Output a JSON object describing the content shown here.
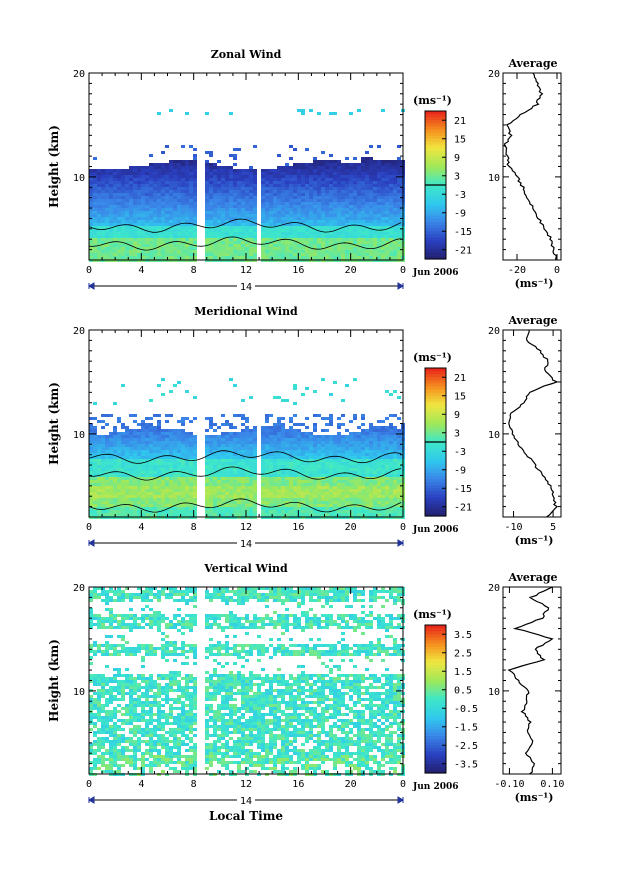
{
  "chart_data": [
    {
      "type": "heatmap",
      "title": "Zonal Wind",
      "ylabel": "Height (km)",
      "ylim": [
        2,
        20
      ],
      "y_ticks": [
        10,
        20
      ],
      "xlabel": "",
      "x_ticks": [
        "0",
        "4",
        "8",
        "12",
        "16",
        "20",
        "0"
      ],
      "day_label": "14",
      "date_label": "Jun 2006",
      "colorbar": {
        "unit": "(ms⁻¹)",
        "ticks": [
          "21",
          "15",
          "9",
          "3",
          "-3",
          "-9",
          "-15",
          "-21"
        ],
        "range": [
          -24,
          24
        ],
        "zero_line": 0
      },
      "profile": {
        "title": "Average",
        "x_ticks": [
          "-20",
          "0"
        ],
        "xlim": [
          -27,
          2
        ],
        "xlabel": "(ms⁻¹)",
        "y_ticks": [
          10,
          20
        ],
        "height_km": [
          2,
          3,
          4,
          5,
          6,
          7,
          8,
          9,
          10,
          11,
          12,
          13,
          14,
          15,
          16,
          17,
          18,
          19,
          20
        ],
        "wind_ms": [
          0,
          -2,
          -3,
          -6,
          -9,
          -12,
          -15,
          -17,
          -20,
          -24,
          -25,
          -26,
          -23,
          -25,
          -18,
          -10,
          -8,
          -10,
          -12
        ]
      }
    },
    {
      "type": "heatmap",
      "title": "Meridional Wind",
      "ylabel": "Height (km)",
      "ylim": [
        2,
        20
      ],
      "y_ticks": [
        10,
        20
      ],
      "xlabel": "",
      "x_ticks": [
        "0",
        "4",
        "8",
        "12",
        "16",
        "20",
        "0"
      ],
      "day_label": "14",
      "date_label": "Jun 2006",
      "colorbar": {
        "unit": "(ms⁻¹)",
        "ticks": [
          "21",
          "15",
          "9",
          "3",
          "-3",
          "-9",
          "-15",
          "-21"
        ],
        "range": [
          -24,
          24
        ],
        "zero_line": 0
      },
      "profile": {
        "title": "Average",
        "x_ticks": [
          "-10",
          "5"
        ],
        "xlim": [
          -14,
          8
        ],
        "xlabel": "(ms⁻¹)",
        "y_ticks": [
          10,
          20
        ],
        "height_km": [
          2,
          3,
          4,
          5,
          6,
          7,
          8,
          9,
          10,
          11,
          12,
          13,
          14,
          15,
          16,
          17,
          18,
          19,
          20
        ],
        "wind_ms": [
          3,
          6,
          5,
          4,
          1,
          -2,
          -5,
          -8,
          -10,
          -12,
          -11,
          -6,
          -4,
          6,
          2,
          3,
          0,
          -5,
          -4
        ]
      }
    },
    {
      "type": "heatmap",
      "title": "Vertical Wind",
      "ylabel": "Height (km)",
      "ylim": [
        2,
        20
      ],
      "y_ticks": [
        10,
        20
      ],
      "xlabel": "Local Time",
      "x_ticks": [
        "0",
        "4",
        "8",
        "12",
        "16",
        "20",
        "0"
      ],
      "day_label": "14",
      "date_label": "Jun 2006",
      "colorbar": {
        "unit": "(ms⁻¹)",
        "ticks": [
          "3.5",
          "2.5",
          "1.5",
          "0.5",
          "-0.5",
          "-1.5",
          "-2.5",
          "-3.5"
        ],
        "range": [
          -4,
          4
        ]
      },
      "profile": {
        "title": "Average",
        "x_ticks": [
          "-0.10",
          "0.10"
        ],
        "xlim": [
          -0.13,
          0.14
        ],
        "xlabel": "(ms⁻¹)",
        "y_ticks": [
          10,
          20
        ],
        "height_km": [
          2,
          3,
          4,
          5,
          6,
          7,
          8,
          9,
          10,
          11,
          12,
          13,
          14,
          15,
          16,
          17,
          18,
          19,
          20
        ],
        "wind_ms": [
          0.0,
          0.02,
          -0.03,
          0.01,
          -0.02,
          0.0,
          -0.04,
          -0.02,
          -0.01,
          -0.06,
          -0.1,
          0.06,
          0.02,
          0.1,
          -0.07,
          0.05,
          0.08,
          0.0,
          0.1
        ]
      }
    }
  ]
}
